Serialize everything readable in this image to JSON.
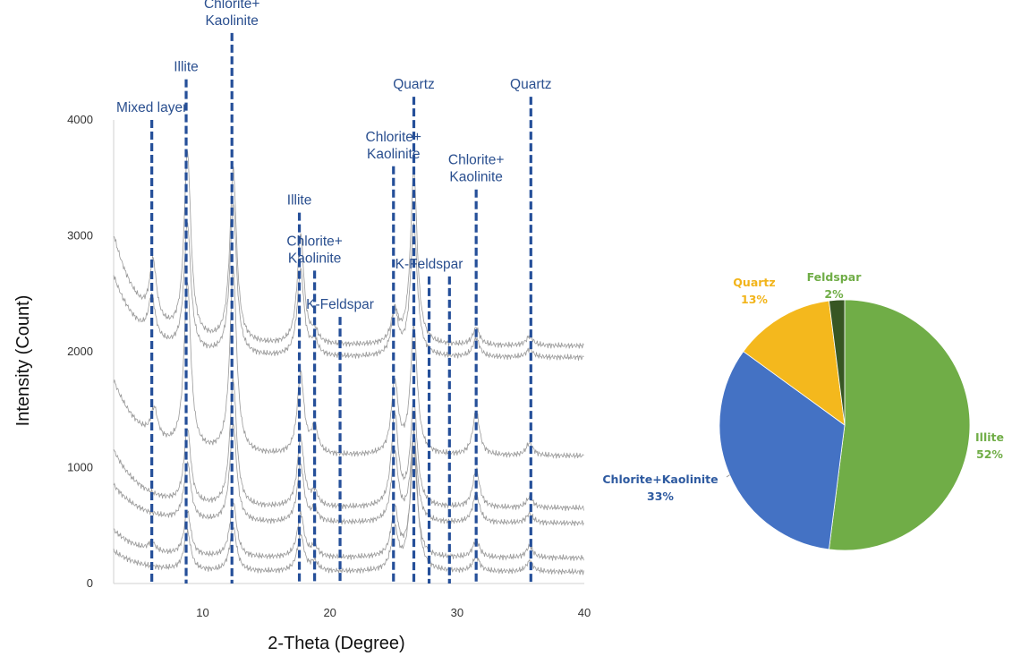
{
  "chart_data": [
    {
      "type": "line",
      "title": "",
      "xlabel": "2-Theta (Degree)",
      "ylabel": "Intensity (Count)",
      "xlim": [
        3,
        40
      ],
      "ylim": [
        0,
        4000
      ],
      "x_ticks": [
        10,
        20,
        30,
        40
      ],
      "y_ticks": [
        0,
        1000,
        2000,
        3000,
        4000
      ],
      "grid": false,
      "series": [
        {
          "base": 2050,
          "start": 3000,
          "peaks": [
            [
              6.1,
              500
            ],
            [
              8.8,
              1600
            ],
            [
              12.4,
              1500
            ],
            [
              17.7,
              950
            ],
            [
              18.8,
              100
            ],
            [
              25.1,
              280
            ],
            [
              26.6,
              1500
            ],
            [
              31.5,
              150
            ],
            [
              35.7,
              80
            ]
          ]
        },
        {
          "base": 1950,
          "start": 2650,
          "peaks": [
            [
              6.0,
              350
            ],
            [
              8.8,
              1100
            ],
            [
              12.4,
              1300
            ],
            [
              17.7,
              750
            ],
            [
              18.8,
              120
            ],
            [
              25.1,
              380
            ],
            [
              26.6,
              1150
            ],
            [
              31.5,
              160
            ],
            [
              35.7,
              70
            ]
          ]
        },
        {
          "base": 1100,
          "start": 1750,
          "peaks": [
            [
              6.2,
              250
            ],
            [
              8.8,
              1450
            ],
            [
              12.4,
              1600
            ],
            [
              17.7,
              700
            ],
            [
              18.8,
              220
            ],
            [
              25.1,
              620
            ],
            [
              26.6,
              1100
            ],
            [
              31.5,
              380
            ],
            [
              35.7,
              110
            ]
          ]
        },
        {
          "base": 650,
          "start": 1150,
          "peaks": [
            [
              8.8,
              650
            ],
            [
              12.4,
              1100
            ],
            [
              17.7,
              600
            ],
            [
              18.8,
              120
            ],
            [
              25.1,
              800
            ],
            [
              26.6,
              900
            ],
            [
              31.5,
              330
            ],
            [
              35.7,
              90
            ]
          ]
        },
        {
          "base": 520,
          "start": 850,
          "peaks": [
            [
              8.8,
              500
            ],
            [
              12.4,
              850
            ],
            [
              17.7,
              500
            ],
            [
              18.8,
              100
            ],
            [
              25.1,
              600
            ],
            [
              26.6,
              750
            ],
            [
              31.5,
              250
            ],
            [
              35.7,
              80
            ]
          ]
        },
        {
          "base": 220,
          "start": 460,
          "peaks": [
            [
              6.0,
              80
            ],
            [
              8.8,
              380
            ],
            [
              12.4,
              480
            ],
            [
              17.7,
              380
            ],
            [
              18.8,
              90
            ],
            [
              25.1,
              420
            ],
            [
              26.6,
              900
            ],
            [
              31.5,
              150
            ],
            [
              35.7,
              100
            ]
          ]
        },
        {
          "base": 100,
          "start": 280,
          "peaks": [
            [
              8.8,
              330
            ],
            [
              12.4,
              380
            ],
            [
              17.7,
              320
            ],
            [
              18.8,
              80
            ],
            [
              25.1,
              350
            ],
            [
              26.6,
              1200
            ],
            [
              31.5,
              130
            ],
            [
              35.7,
              90
            ]
          ]
        }
      ],
      "annotations": [
        {
          "x": 6,
          "top": 4000,
          "lines": [
            "Mixed layer"
          ]
        },
        {
          "x": 8.7,
          "top": 4350,
          "lines": [
            "Illite"
          ]
        },
        {
          "x": 12.3,
          "top": 4750,
          "lines": [
            "Chlorite+",
            "Kaolinite"
          ]
        },
        {
          "x": 17.6,
          "top": 3200,
          "lines": [
            "Illite"
          ]
        },
        {
          "x": 18.8,
          "top": 2700,
          "lines": [
            "Chlorite+",
            "Kaolinite"
          ]
        },
        {
          "x": 20.8,
          "top": 2300,
          "lines": [
            "K-Feldspar"
          ]
        },
        {
          "x": 25.0,
          "top": 3600,
          "lines": [
            "Chlorite+",
            "Kaolinite"
          ]
        },
        {
          "x": 26.6,
          "top": 4200,
          "lines": [
            "Quartz"
          ]
        },
        {
          "x": 27.8,
          "top": 2650,
          "lines": [
            "K-Feldspar"
          ]
        },
        {
          "x": 29.4,
          "top": 2650,
          "lines": []
        },
        {
          "x": 31.5,
          "top": 3400,
          "lines": [
            "Chlorite+",
            "Kaolinite"
          ]
        },
        {
          "x": 35.8,
          "top": 4200,
          "lines": [
            "Quartz"
          ]
        }
      ]
    },
    {
      "type": "pie",
      "title": "",
      "slices": [
        {
          "label": "Illite",
          "value": 52,
          "text": "52%",
          "color": "#70ad47",
          "label_color": "#70ad47"
        },
        {
          "label": "Chlorite+Kaolinite",
          "value": 33,
          "text": "33%",
          "color": "#4472c4",
          "label_color": "#2e5aa0"
        },
        {
          "label": "Quartz",
          "value": 13,
          "text": "13%",
          "color": "#f4b81d",
          "label_color": "#f2b41a"
        },
        {
          "label": "Feldspar",
          "value": 2,
          "text": "2%",
          "color": "#375623",
          "label_color": "#70ad47"
        }
      ]
    }
  ],
  "colors": {
    "peak_line": "#254f99",
    "trace": "#9a9a9a",
    "axis": "#d0d0d0"
  }
}
